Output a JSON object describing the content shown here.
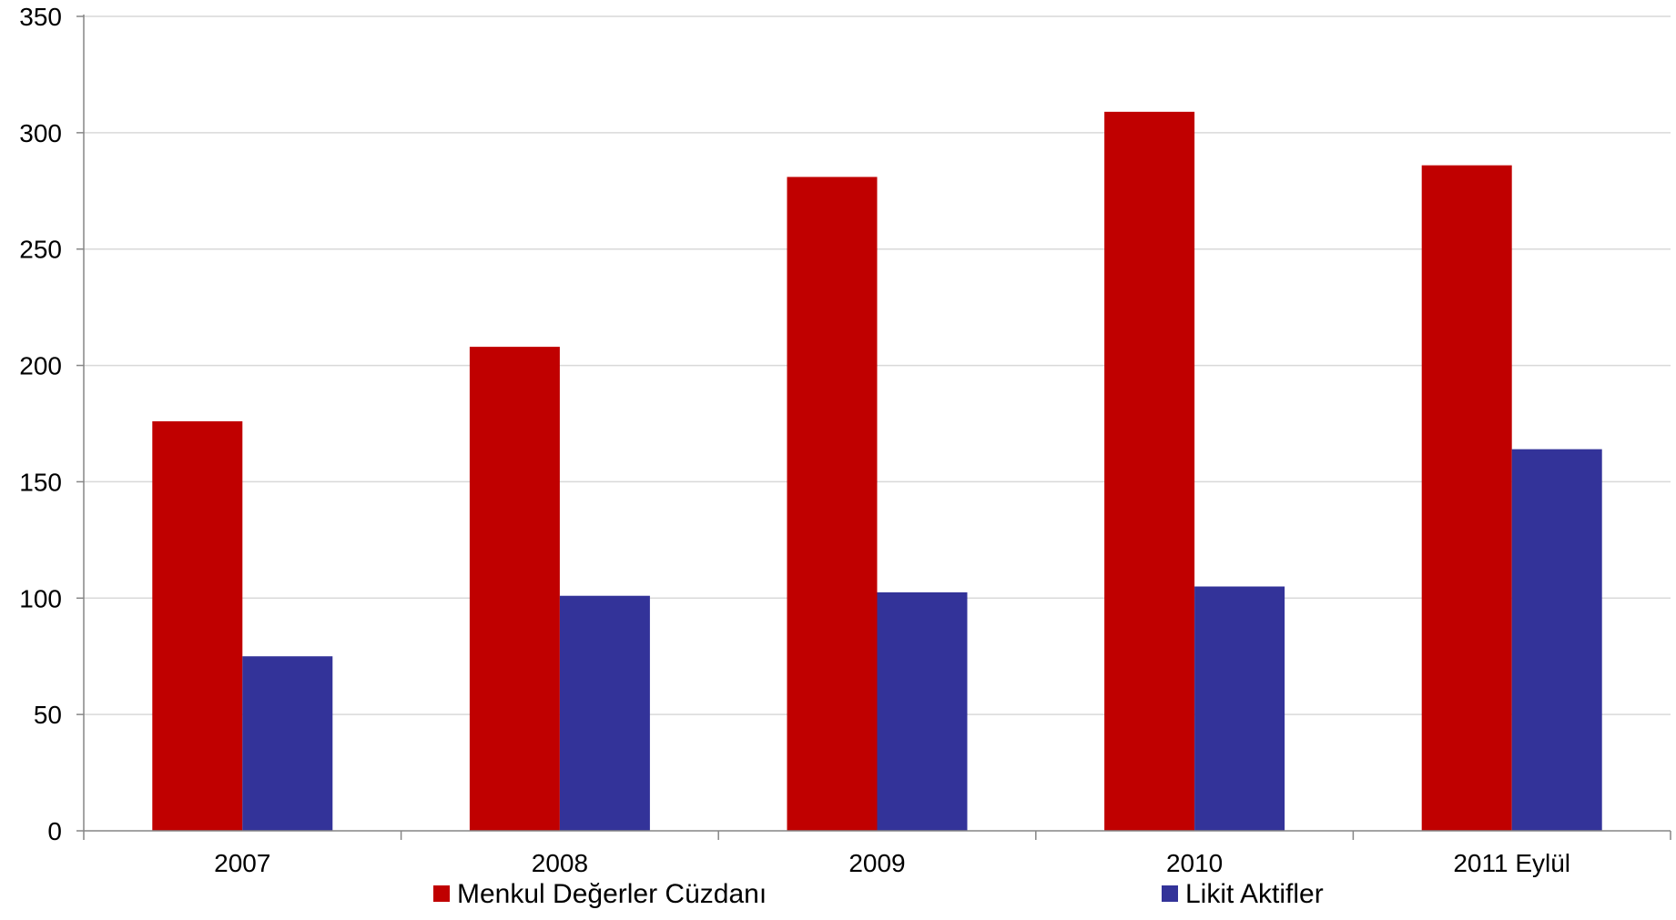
{
  "chart_data": {
    "type": "bar",
    "title": "",
    "xlabel": "",
    "ylabel": "",
    "categories": [
      "2007",
      "2008",
      "2009",
      "2010",
      "2011 Eylül"
    ],
    "series": [
      {
        "name": "Menkul Değerler Cüzdanı",
        "color": "#C00000",
        "values": [
          176,
          208,
          281,
          309,
          286
        ]
      },
      {
        "name": "Likit Aktifler",
        "color": "#333399",
        "values": [
          75,
          101,
          102.5,
          105,
          164
        ]
      }
    ],
    "ylim": [
      0,
      350
    ],
    "yticks": [
      0,
      50,
      100,
      150,
      200,
      250,
      300,
      350
    ],
    "grid": true,
    "legend_position": "bottom"
  }
}
